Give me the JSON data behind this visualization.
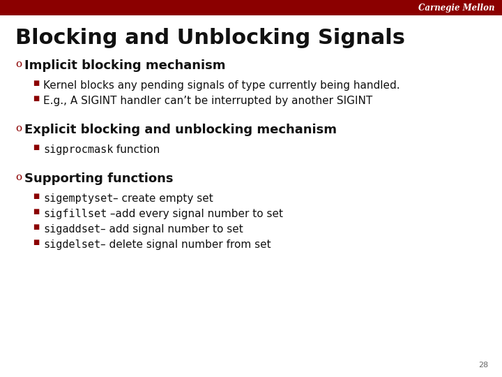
{
  "bg_color": "#ffffff",
  "header_color": "#8B0000",
  "header_text": "Carnegie Mellon",
  "header_text_color": "#ffffff",
  "title": "Blocking and Unblocking Signals",
  "title_color": "#111111",
  "title_fontsize": 22,
  "bullet_color": "#8B0000",
  "heading_fontsize": 13,
  "sub_fontsize": 11,
  "mono_fontsize": 11,
  "page_number": "28",
  "page_color": "#666666",
  "sections": [
    {
      "heading": "Implicit blocking mechanism",
      "bullets": [
        {
          "mono": "",
          "rest": "Kernel blocks any pending signals of type currently being handled."
        },
        {
          "mono": "",
          "rest": "E.g., A SIGINT handler can’t be interrupted by another SIGINT"
        }
      ]
    },
    {
      "heading": "Explicit blocking and unblocking mechanism",
      "bullets": [
        {
          "mono": "sigprocmask",
          "rest": " function"
        }
      ]
    },
    {
      "heading": "Supporting functions",
      "bullets": [
        {
          "mono": "sigemptyset",
          "rest": "– create empty set"
        },
        {
          "mono": "sigfillset",
          "rest": " –add every signal number to set"
        },
        {
          "mono": "sigaddset",
          "rest": "– add signal number to set"
        },
        {
          "mono": "sigdelset",
          "rest": "– delete signal number from set"
        }
      ]
    }
  ]
}
